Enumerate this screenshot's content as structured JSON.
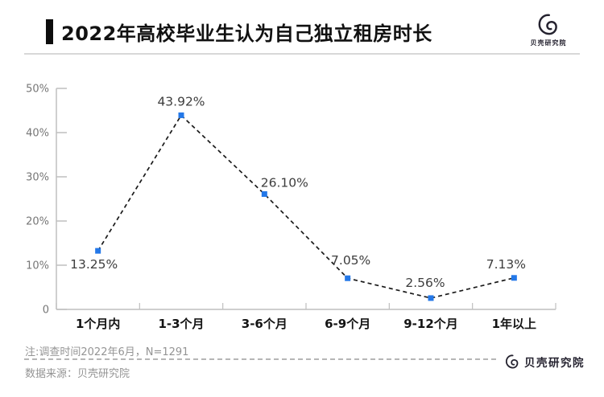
{
  "header": {
    "title": "2022年高校毕业生认为自己独立租房时长",
    "logo_text": "贝壳研究院"
  },
  "chart_data": {
    "type": "line",
    "title": "2022年高校毕业生认为自己独立租房时长",
    "categories": [
      "1个月内",
      "1-3个月",
      "3-6个月",
      "6-9个月",
      "9-12个月",
      "1年以上"
    ],
    "values": [
      13.25,
      43.92,
      26.1,
      7.05,
      2.56,
      7.13
    ],
    "labels": [
      "13.25%",
      "43.92%",
      "26.10%",
      "7.05%",
      "2.56%",
      "7.13%"
    ],
    "xlabel": "",
    "ylabel": "",
    "ylim": [
      0,
      50
    ],
    "yticks": [
      "0",
      "10%",
      "20%",
      "30%",
      "40%",
      "50%"
    ],
    "grid": false,
    "legend": "none",
    "line_style": "dashed",
    "marker": "square",
    "line_color": "#1a1a1a",
    "marker_color": "#2478e8",
    "axis_color": "#bfbfbf"
  },
  "footer": {
    "note": "注:调查时间2022年6月，N=1291",
    "source": "数据来源：贝壳研究院",
    "logo_text": "贝壳研究院"
  }
}
